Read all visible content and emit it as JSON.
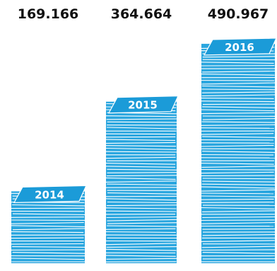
{
  "chart_data": {
    "type": "bar",
    "categories": [
      "2014",
      "2015",
      "2016"
    ],
    "values": [
      169166,
      364664,
      490967
    ],
    "value_labels": [
      "169.166",
      "364.664",
      "490.967"
    ],
    "title": "",
    "xlabel": "",
    "ylabel": "",
    "ylim": [
      0,
      500000
    ],
    "grid": false,
    "legend": "none",
    "mark_style": "stacked-paper-pile",
    "colors": {
      "paper_fill": "#2aa6df",
      "paper_edge": "#ffffff",
      "top_sheet": "#1b9bd8",
      "value_text": "#111111",
      "year_text": "#ffffff"
    }
  }
}
